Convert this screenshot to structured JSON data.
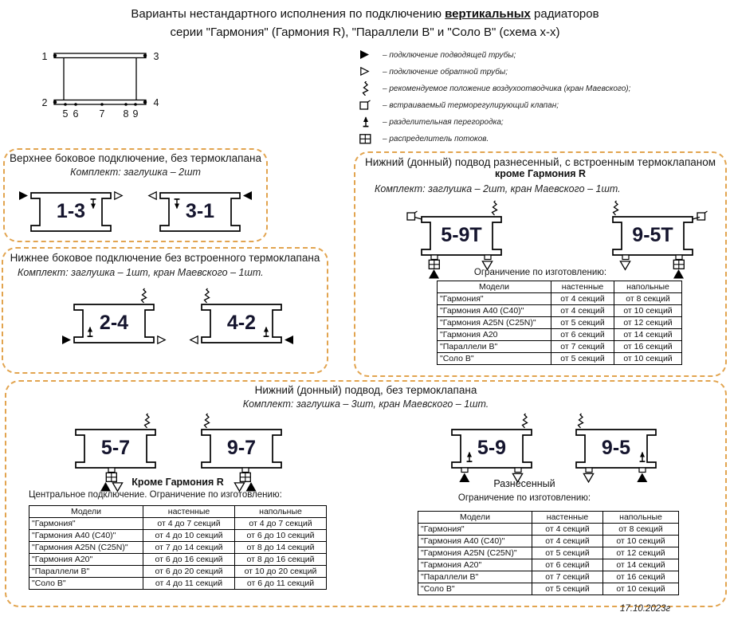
{
  "date": "17.10.2023г",
  "title": {
    "line1_pre": "Варианты нестандартного исполнения по подключению ",
    "line1_emph": "вертикальных",
    "line1_post": " радиаторов",
    "line2": "серии \"Гармония\" (Гармония R), \"Параллели В\" и \"Соло В\"  (схема х-х)"
  },
  "overview": {
    "numbers": [
      "1",
      "2",
      "3",
      "4",
      "5",
      "6",
      "7",
      "8",
      "9"
    ]
  },
  "legend": {
    "items": [
      {
        "icon": "supply-triangle-icon",
        "text": "– подключение подводящей трубы;"
      },
      {
        "icon": "return-triangle-icon",
        "text": "– подключение обратной трубы;"
      },
      {
        "icon": "air-vent-icon",
        "text": "– рекомендуемое положение воздухоотводчика (кран Маевского);"
      },
      {
        "icon": "thermo-valve-icon",
        "text": "– встраиваемый терморегулирующий клапан;"
      },
      {
        "icon": "divider-icon",
        "text": "– разделительная перегородка;"
      },
      {
        "icon": "flow-distributor-icon",
        "text": "– распределитель потоков."
      }
    ]
  },
  "sections": {
    "top_side": {
      "title": "Верхнее боковое подключение, без термоклапана",
      "subtitle": "Комплект: заглушка – 2шт",
      "diagrams": {
        "d13": "1-3",
        "d31": "3-1"
      }
    },
    "bottom_side": {
      "title": "Нижнее боковое подключение без встроенного термоклапана",
      "subtitle": "Комплект: заглушка – 1шт, кран Маевского – 1шт.",
      "diagrams": {
        "d24": "2-4",
        "d42": "4-2"
      }
    },
    "spread_thermo": {
      "title": "Нижний (донный) подвод разнесенный, с встроенным термоклапаном",
      "title_bold": "кроме Гармония R",
      "subtitle": "Комплект: заглушка – 2шт, кран Маевского – 1шт.",
      "diagrams": {
        "d59t": "5-9Т",
        "d95t": "9-5Т"
      },
      "note": "Ограничение по изготовлению:",
      "table": {
        "headers": [
          "Модели",
          "настенные",
          "напольные"
        ],
        "rows": [
          [
            "\"Гармония\"",
            "от 4 секций",
            "от 8 секций"
          ],
          [
            "\"Гармония А40 (С40)\"",
            "от 4 секций",
            "от 10 секций"
          ],
          [
            "\"Гармония А25N (С25N)\"",
            "от 5 секций",
            "от 12 секций"
          ],
          [
            "\"Гармония А20",
            "от 6 секций",
            "от 14 секций"
          ],
          [
            "\"Параллели В\"",
            "от 7 секций",
            "от 16 секций"
          ],
          [
            "\"Соло В\"",
            "от 5 секций",
            "от 10 секций"
          ]
        ]
      }
    },
    "bottom_feed": {
      "title": "Нижний (донный) подвод, без термоклапана",
      "subtitle": "Комплект: заглушка – 3шт, кран Маевского – 1шт.",
      "central": {
        "diagrams": {
          "d57": "5-7",
          "d97": "9-7"
        },
        "bold_note": "Кроме Гармония R",
        "note": "Центральное подключение. Ограничение по изготовлению:",
        "table": {
          "headers": [
            "Модели",
            "настенные",
            "напольные"
          ],
          "rows": [
            [
              "\"Гармония\"",
              "от 4 до 7 секций",
              "от 4 до 7 секций"
            ],
            [
              "\"Гармония А40 (С40)\"",
              "от 4 до 10 секций",
              "от 6 до 10 секций"
            ],
            [
              "\"Гармония А25N (С25N)\"",
              "от 7 до 14 секций",
              "от 8 до 14 секций"
            ],
            [
              "\"Гармония А20\"",
              "от 6 до 16 секций",
              "от 8 до 16 секций"
            ],
            [
              "\"Параллели В\"",
              "от 6 до 20 секций",
              "от 10 до 20 секций"
            ],
            [
              "\"Соло В\"",
              "от 4 до 11 секций",
              "от 6 до 11 секций"
            ]
          ]
        }
      },
      "spread": {
        "diagrams": {
          "d59": "5-9",
          "d95": "9-5"
        },
        "bold_note": "Разнесенный",
        "note": "Ограничение по изготовлению:",
        "table": {
          "headers": [
            "Модели",
            "настенные",
            "напольные"
          ],
          "rows": [
            [
              "\"Гармония\"",
              "от 4 секций",
              "от 8 секций"
            ],
            [
              "\"Гармония А40 (С40)\"",
              "от 4 секций",
              "от 10 секций"
            ],
            [
              "\"Гармония А25N (С25N)\"",
              "от 5 секций",
              "от 12 секций"
            ],
            [
              "\"Гармония А20\"",
              "от 6 секций",
              "от 14 секций"
            ],
            [
              "\"Параллели В\"",
              "от 7 секций",
              "от 16 секций"
            ],
            [
              "\"Соло В\"",
              "от 5 секций",
              "от 10 секций"
            ]
          ]
        }
      }
    }
  },
  "colors": {
    "box_border": "#E2A44F"
  }
}
